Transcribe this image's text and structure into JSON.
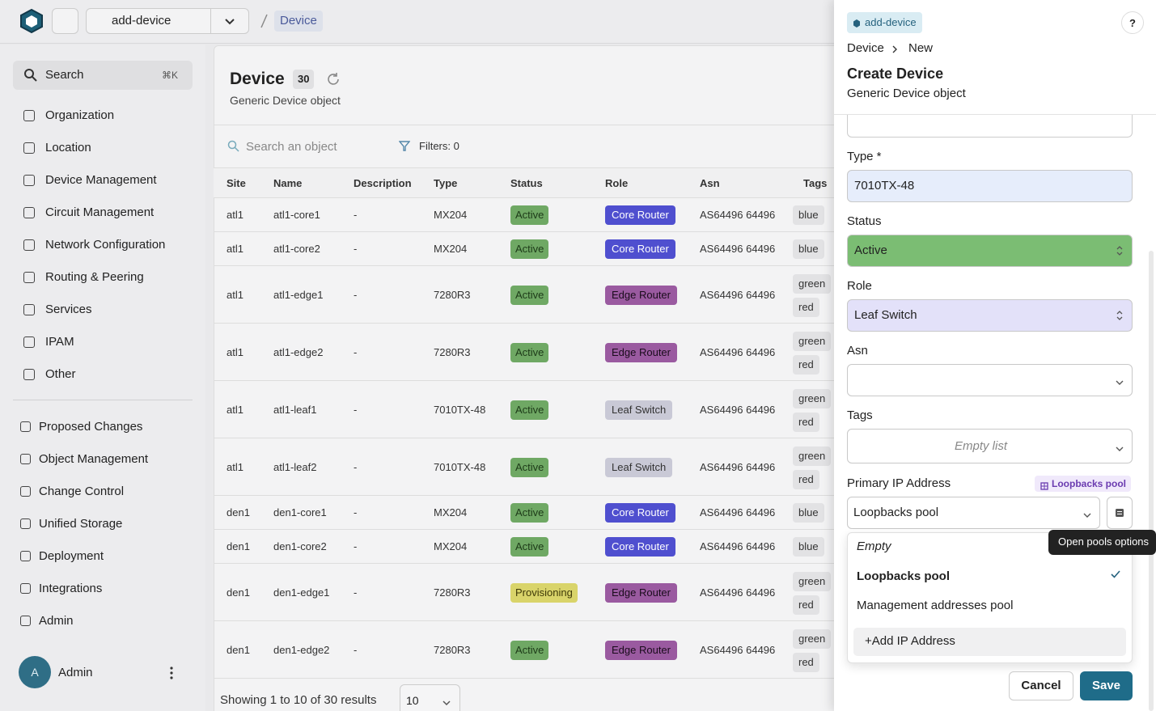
{
  "topbar": {
    "branch": "add-device",
    "breadcrumb": "Device"
  },
  "sidebar": {
    "search": "Search",
    "shortcut": "⌘K",
    "menu": [
      "Organization",
      "Location",
      "Device Management",
      "Circuit Management",
      "Network Configuration",
      "Routing & Peering",
      "Services",
      "IPAM",
      "Other"
    ],
    "menu2": [
      "Proposed Changes",
      "Object Management",
      "Change Control",
      "Unified Storage",
      "Deployment",
      "Integrations",
      "Admin"
    ],
    "avatar": "A",
    "user": "Admin"
  },
  "main": {
    "title": "Device",
    "count": "30",
    "subtitle": "Generic Device object",
    "search_placeholder": "Search an object",
    "filters": "Filters: 0",
    "columns": [
      "Site",
      "Name",
      "Description",
      "Type",
      "Status",
      "Role",
      "Asn",
      "Tags"
    ],
    "rows": [
      [
        "atl1",
        "atl1-core1",
        "-",
        "MX204",
        "Active",
        "Core Router",
        "AS64496 64496",
        [
          "blue"
        ]
      ],
      [
        "atl1",
        "atl1-core2",
        "-",
        "MX204",
        "Active",
        "Core Router",
        "AS64496 64496",
        [
          "blue"
        ]
      ],
      [
        "atl1",
        "atl1-edge1",
        "-",
        "7280R3",
        "Active",
        "Edge Router",
        "AS64496 64496",
        [
          "green",
          "red"
        ]
      ],
      [
        "atl1",
        "atl1-edge2",
        "-",
        "7280R3",
        "Active",
        "Edge Router",
        "AS64496 64496",
        [
          "green",
          "red"
        ]
      ],
      [
        "atl1",
        "atl1-leaf1",
        "-",
        "7010TX-48",
        "Active",
        "Leaf Switch",
        "AS64496 64496",
        [
          "green",
          "red"
        ]
      ],
      [
        "atl1",
        "atl1-leaf2",
        "-",
        "7010TX-48",
        "Active",
        "Leaf Switch",
        "AS64496 64496",
        [
          "green",
          "red"
        ]
      ],
      [
        "den1",
        "den1-core1",
        "-",
        "MX204",
        "Active",
        "Core Router",
        "AS64496 64496",
        [
          "blue"
        ]
      ],
      [
        "den1",
        "den1-core2",
        "-",
        "MX204",
        "Active",
        "Core Router",
        "AS64496 64496",
        [
          "blue"
        ]
      ],
      [
        "den1",
        "den1-edge1",
        "-",
        "7280R3",
        "Provisioning",
        "Edge Router",
        "AS64496 64496",
        [
          "green",
          "red"
        ]
      ],
      [
        "den1",
        "den1-edge2",
        "-",
        "7280R3",
        "Active",
        "Edge Router",
        "AS64496 64496",
        [
          "green",
          "red"
        ]
      ]
    ],
    "footer": "Showing 1 to 10 of 30 results",
    "page_size": "10"
  },
  "panel": {
    "branch": "add-device",
    "help": "?",
    "breadcrumb": [
      "Device",
      "New"
    ],
    "title": "Create Device",
    "subtitle": "Generic Device object",
    "type_label": "Type *",
    "type_value": "7010TX-48",
    "status_label": "Status",
    "status_value": "Active",
    "role_label": "Role",
    "role_value": "Leaf Switch",
    "asn_label": "Asn",
    "tags_label": "Tags",
    "tags_value": "Empty list",
    "ip_label": "Primary IP Address",
    "ip_badge": "Loopbacks pool",
    "ip_value": "Loopbacks pool",
    "options": [
      "Empty",
      "Loopbacks pool",
      "Management addresses pool"
    ],
    "add": "+Add IP Address",
    "tooltip": "Open pools options",
    "cancel": "Cancel",
    "save": "Save"
  }
}
